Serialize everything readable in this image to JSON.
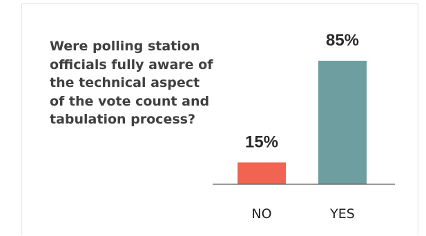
{
  "chart_data": {
    "type": "bar",
    "title": "Were polling station officials fully aware of the technical aspect of the vote count and tabulation process?",
    "categories": [
      "NO",
      "YES"
    ],
    "values": [
      15,
      85
    ],
    "value_labels": [
      "15%",
      "85%"
    ],
    "colors": [
      "#f26452",
      "#6e9e9f"
    ],
    "ylim": [
      0,
      85
    ],
    "grid": false,
    "legend": "none"
  }
}
